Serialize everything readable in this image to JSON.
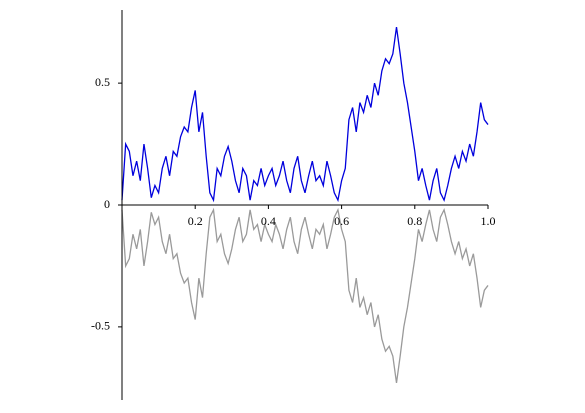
{
  "chart_data": {
    "type": "line",
    "x": [
      0,
      0.01,
      0.02,
      0.03,
      0.04,
      0.05,
      0.06,
      0.07,
      0.08,
      0.09,
      0.1,
      0.11,
      0.12,
      0.13,
      0.14,
      0.15,
      0.16,
      0.17,
      0.18,
      0.19,
      0.2,
      0.21,
      0.22,
      0.23,
      0.24,
      0.25,
      0.26,
      0.27,
      0.28,
      0.29,
      0.3,
      0.31,
      0.32,
      0.33,
      0.34,
      0.35,
      0.36,
      0.37,
      0.38,
      0.39,
      0.4,
      0.41,
      0.42,
      0.43,
      0.44,
      0.45,
      0.46,
      0.47,
      0.48,
      0.49,
      0.5,
      0.51,
      0.52,
      0.53,
      0.54,
      0.55,
      0.56,
      0.57,
      0.58,
      0.59,
      0.6,
      0.61,
      0.62,
      0.63,
      0.64,
      0.65,
      0.66,
      0.67,
      0.68,
      0.69,
      0.7,
      0.71,
      0.72,
      0.73,
      0.74,
      0.75,
      0.76,
      0.77,
      0.78,
      0.79,
      0.8,
      0.81,
      0.82,
      0.83,
      0.84,
      0.85,
      0.86,
      0.87,
      0.88,
      0.89,
      0.9,
      0.91,
      0.92,
      0.93,
      0.94,
      0.95,
      0.96,
      0.97,
      0.98,
      0.99,
      1.0
    ],
    "series": [
      {
        "color": "#9a9a9a",
        "values": [
          -0.02,
          -0.25,
          -0.22,
          -0.12,
          -0.18,
          -0.1,
          -0.25,
          -0.15,
          -0.03,
          -0.08,
          -0.05,
          -0.15,
          -0.2,
          -0.12,
          -0.22,
          -0.2,
          -0.28,
          -0.32,
          -0.3,
          -0.4,
          -0.47,
          -0.3,
          -0.38,
          -0.2,
          -0.05,
          -0.02,
          -0.15,
          -0.12,
          -0.2,
          -0.24,
          -0.18,
          -0.1,
          -0.05,
          -0.15,
          -0.12,
          -0.02,
          -0.1,
          -0.08,
          -0.15,
          -0.08,
          -0.12,
          -0.15,
          -0.08,
          -0.12,
          -0.18,
          -0.1,
          -0.05,
          -0.15,
          -0.2,
          -0.1,
          -0.05,
          -0.12,
          -0.18,
          -0.1,
          -0.12,
          -0.08,
          -0.18,
          -0.12,
          -0.05,
          -0.02,
          -0.1,
          -0.15,
          -0.35,
          -0.4,
          -0.3,
          -0.42,
          -0.38,
          -0.45,
          -0.4,
          -0.5,
          -0.45,
          -0.55,
          -0.6,
          -0.58,
          -0.62,
          -0.73,
          -0.62,
          -0.5,
          -0.42,
          -0.32,
          -0.22,
          -0.1,
          -0.15,
          -0.08,
          -0.02,
          -0.1,
          -0.15,
          -0.05,
          -0.02,
          -0.08,
          -0.15,
          -0.2,
          -0.15,
          -0.22,
          -0.18,
          -0.25,
          -0.2,
          -0.3,
          -0.42,
          -0.35,
          -0.33
        ]
      },
      {
        "color": "#0000dd",
        "values": [
          0.02,
          0.25,
          0.22,
          0.12,
          0.18,
          0.1,
          0.25,
          0.15,
          0.03,
          0.08,
          0.05,
          0.15,
          0.2,
          0.12,
          0.22,
          0.2,
          0.28,
          0.32,
          0.3,
          0.4,
          0.47,
          0.3,
          0.38,
          0.2,
          0.05,
          0.02,
          0.15,
          0.12,
          0.2,
          0.24,
          0.18,
          0.1,
          0.05,
          0.15,
          0.12,
          0.02,
          0.1,
          0.08,
          0.15,
          0.08,
          0.12,
          0.15,
          0.08,
          0.12,
          0.18,
          0.1,
          0.05,
          0.15,
          0.2,
          0.1,
          0.05,
          0.12,
          0.18,
          0.1,
          0.12,
          0.08,
          0.18,
          0.12,
          0.05,
          0.02,
          0.1,
          0.15,
          0.35,
          0.4,
          0.3,
          0.42,
          0.38,
          0.45,
          0.4,
          0.5,
          0.45,
          0.55,
          0.6,
          0.58,
          0.62,
          0.73,
          0.62,
          0.5,
          0.42,
          0.32,
          0.22,
          0.1,
          0.15,
          0.08,
          0.02,
          0.1,
          0.15,
          0.05,
          0.02,
          0.08,
          0.15,
          0.2,
          0.15,
          0.22,
          0.18,
          0.25,
          0.2,
          0.3,
          0.42,
          0.35,
          0.33
        ]
      }
    ],
    "xlim": [
      0,
      1
    ],
    "ylim": [
      -0.8,
      0.8
    ],
    "xticks": [
      0.2,
      0.4,
      0.6,
      0.8,
      {
        "value": 1,
        "label": "1.0"
      }
    ],
    "yticks": [
      -0.5,
      0,
      0.5
    ]
  }
}
